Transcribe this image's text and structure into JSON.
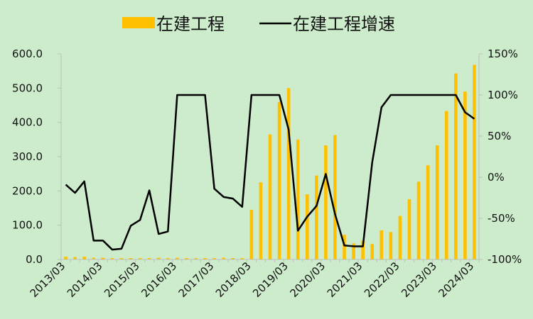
{
  "chart_data": {
    "type": "bar",
    "colors": {
      "bar": "#ffc000",
      "line": "#000000",
      "background": "#cdeccb"
    },
    "legend": {
      "placement": "top",
      "entries": [
        "在建工程",
        "在建工程增速"
      ]
    },
    "grid": false,
    "left_axis": {
      "ylim": [
        0,
        600
      ],
      "ticks": [
        "0.0",
        "100.0",
        "200.0",
        "300.0",
        "400.0",
        "500.0",
        "600.0"
      ]
    },
    "right_axis": {
      "ylim": [
        -100,
        150
      ],
      "ticks": [
        "-100%",
        "-50%",
        "0%",
        "50%",
        "100%",
        "150%"
      ]
    },
    "x_ticks": [
      "2013/03",
      "2014/03",
      "2015/03",
      "2016/03",
      "2017/03",
      "2018/03",
      "2019/03",
      "2020/03",
      "2021/03",
      "2022/03",
      "2023/03",
      "2024/03"
    ],
    "series": [
      {
        "name": "在建工程",
        "type": "bar",
        "axis": "left",
        "values": [
          8,
          7,
          8,
          5,
          5,
          4,
          4,
          4,
          4,
          4,
          5,
          4,
          5,
          4,
          4,
          4,
          4,
          5,
          4,
          4,
          145,
          225,
          365,
          460,
          500,
          350,
          190,
          245,
          333,
          363,
          72,
          47,
          55,
          45,
          85,
          80,
          127,
          176,
          227,
          275,
          333,
          433,
          543,
          490,
          568
        ]
      },
      {
        "name": "在建工程增速",
        "type": "line",
        "axis": "right",
        "values": [
          -9,
          -19,
          -5,
          -77,
          -77,
          -88,
          -87,
          -59,
          -52,
          -16,
          -69,
          -66,
          100,
          100,
          100,
          100,
          -14,
          -24,
          -26,
          -36,
          100,
          100,
          100,
          100,
          58,
          -65,
          -48,
          -35,
          4,
          -45,
          -83,
          -84,
          -84,
          18,
          85,
          100,
          100,
          100,
          100,
          100,
          100,
          100,
          100,
          79,
          71
        ]
      }
    ]
  }
}
